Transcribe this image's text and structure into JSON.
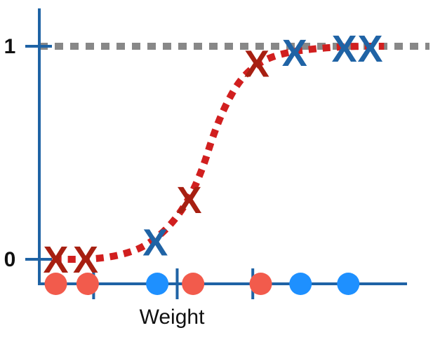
{
  "chart_data": {
    "type": "scatter",
    "xlabel": "Weight",
    "y_ticks": [
      {
        "label": "0",
        "value": 0
      },
      {
        "label": "1",
        "value": 1
      }
    ],
    "xlim": [
      0,
      10
    ],
    "ylim": [
      0,
      1
    ],
    "axis_color": "#1f63a5",
    "threshold_lines_x": [
      2.0,
      4.1,
      6.0
    ],
    "dots": [
      {
        "x": 1.05,
        "color": "#f25b4c"
      },
      {
        "x": 1.85,
        "color": "#f25b4c"
      },
      {
        "x": 3.6,
        "color": "#1e90ff"
      },
      {
        "x": 4.5,
        "color": "#f25b4c"
      },
      {
        "x": 6.2,
        "color": "#f25b4c"
      },
      {
        "x": 7.2,
        "color": "#1e90ff"
      },
      {
        "x": 8.4,
        "color": "#1e90ff"
      }
    ],
    "x_markers": [
      {
        "x": 1.05,
        "y": 0.0,
        "color": "#a71f11"
      },
      {
        "x": 1.8,
        "y": 0.0,
        "color": "#a71f11"
      },
      {
        "x": 3.55,
        "y": 0.08,
        "color": "#1f63a5"
      },
      {
        "x": 4.4,
        "y": 0.28,
        "color": "#a71f11"
      },
      {
        "x": 6.1,
        "y": 0.92,
        "color": "#a71f11"
      },
      {
        "x": 7.05,
        "y": 0.97,
        "color": "#1f63a5"
      },
      {
        "x": 8.3,
        "y": 0.99,
        "color": "#1f63a5"
      },
      {
        "x": 8.95,
        "y": 0.99,
        "color": "#1f63a5"
      }
    ],
    "marker_glyph": "X",
    "curve_points": [
      [
        1.0,
        0.0
      ],
      [
        2.0,
        0.0
      ],
      [
        2.7,
        0.02
      ],
      [
        3.3,
        0.06
      ],
      [
        3.9,
        0.15
      ],
      [
        4.4,
        0.28
      ],
      [
        4.75,
        0.43
      ],
      [
        5.0,
        0.58
      ],
      [
        5.3,
        0.72
      ],
      [
        5.7,
        0.85
      ],
      [
        6.2,
        0.93
      ],
      [
        6.8,
        0.97
      ],
      [
        7.6,
        0.99
      ],
      [
        8.5,
        1.0
      ],
      [
        9.3,
        1.0
      ]
    ],
    "curve_color": "#d11f1f",
    "reference_line": {
      "y": 1,
      "color": "#888888",
      "style": "dashed"
    }
  }
}
